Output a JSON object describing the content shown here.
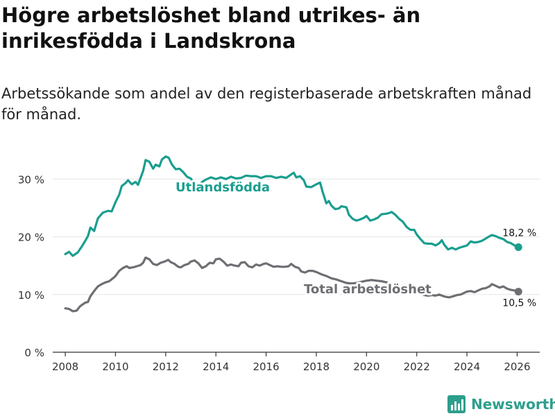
{
  "header": {
    "title": "Högre arbetslöshet bland utrikes- än inrikesfödda i Landskrona",
    "subtitle": "Arbetssökande som andel av den registerbaserade arbetskraften månad för månad."
  },
  "brand": {
    "name": "Newsworthy"
  },
  "colors": {
    "foreign": "#1a9e8f",
    "total": "#6e6e73",
    "grid": "#e6e6e6",
    "axis": "#333333"
  },
  "chart_data": {
    "type": "line",
    "title": "Högre arbetslöshet bland utrikes- än inrikesfödda i Landskrona",
    "xlabel": "",
    "ylabel": "",
    "xlim": [
      2007.5,
      2026.9
    ],
    "ylim": [
      0,
      37
    ],
    "x_ticks": [
      2008,
      2010,
      2012,
      2014,
      2016,
      2018,
      2020,
      2022,
      2024,
      2026
    ],
    "x_tick_labels": [
      "2008",
      "2010",
      "2012",
      "2014",
      "2016",
      "2018",
      "2020",
      "2022",
      "2024",
      "2026"
    ],
    "y_ticks": [
      0,
      10,
      20,
      30
    ],
    "y_tick_labels": [
      "0 %",
      "10 %",
      "20 %",
      "30 %"
    ],
    "grid": "horizontal",
    "series": [
      {
        "name": "Utlandsfödda",
        "end_label": "18,2 %",
        "points": [
          [
            2008.0,
            17.0
          ],
          [
            2008.15,
            17.4
          ],
          [
            2008.3,
            16.7
          ],
          [
            2008.5,
            17.3
          ],
          [
            2008.7,
            18.6
          ],
          [
            2008.9,
            20.1
          ],
          [
            2009.0,
            21.6
          ],
          [
            2009.15,
            21.0
          ],
          [
            2009.3,
            23.2
          ],
          [
            2009.5,
            24.2
          ],
          [
            2009.7,
            24.5
          ],
          [
            2009.85,
            24.4
          ],
          [
            2010.0,
            26.0
          ],
          [
            2010.15,
            27.3
          ],
          [
            2010.25,
            28.8
          ],
          [
            2010.4,
            29.3
          ],
          [
            2010.5,
            29.8
          ],
          [
            2010.65,
            29.1
          ],
          [
            2010.8,
            29.5
          ],
          [
            2010.9,
            29.0
          ],
          [
            2011.0,
            30.2
          ],
          [
            2011.1,
            31.4
          ],
          [
            2011.2,
            33.3
          ],
          [
            2011.35,
            33.0
          ],
          [
            2011.5,
            31.8
          ],
          [
            2011.6,
            32.5
          ],
          [
            2011.75,
            32.2
          ],
          [
            2011.85,
            33.4
          ],
          [
            2012.0,
            33.9
          ],
          [
            2012.12,
            33.7
          ],
          [
            2012.25,
            32.5
          ],
          [
            2012.4,
            31.7
          ],
          [
            2012.55,
            31.8
          ],
          [
            2012.7,
            31.2
          ],
          [
            2012.85,
            30.4
          ],
          [
            2013.0,
            30.1
          ],
          [
            2013.15,
            29.2
          ],
          [
            2013.3,
            28.7
          ],
          [
            2013.45,
            29.5
          ],
          [
            2013.6,
            29.9
          ],
          [
            2013.8,
            30.3
          ],
          [
            2014.0,
            30.0
          ],
          [
            2014.2,
            30.3
          ],
          [
            2014.4,
            30.0
          ],
          [
            2014.6,
            30.4
          ],
          [
            2014.8,
            30.1
          ],
          [
            2015.0,
            30.2
          ],
          [
            2015.2,
            30.6
          ],
          [
            2015.4,
            30.5
          ],
          [
            2015.6,
            30.5
          ],
          [
            2015.8,
            30.2
          ],
          [
            2016.0,
            30.5
          ],
          [
            2016.2,
            30.5
          ],
          [
            2016.4,
            30.2
          ],
          [
            2016.6,
            30.4
          ],
          [
            2016.8,
            30.2
          ],
          [
            2017.0,
            30.8
          ],
          [
            2017.1,
            31.1
          ],
          [
            2017.2,
            30.3
          ],
          [
            2017.35,
            30.5
          ],
          [
            2017.5,
            29.8
          ],
          [
            2017.6,
            28.7
          ],
          [
            2017.8,
            28.6
          ],
          [
            2018.0,
            29.1
          ],
          [
            2018.15,
            29.4
          ],
          [
            2018.25,
            27.8
          ],
          [
            2018.4,
            25.8
          ],
          [
            2018.5,
            26.2
          ],
          [
            2018.6,
            25.4
          ],
          [
            2018.75,
            24.8
          ],
          [
            2018.9,
            24.9
          ],
          [
            2019.0,
            25.3
          ],
          [
            2019.2,
            25.1
          ],
          [
            2019.3,
            23.8
          ],
          [
            2019.45,
            23.1
          ],
          [
            2019.6,
            22.8
          ],
          [
            2019.75,
            23.0
          ],
          [
            2019.9,
            23.3
          ],
          [
            2020.0,
            23.6
          ],
          [
            2020.15,
            22.8
          ],
          [
            2020.3,
            23.0
          ],
          [
            2020.45,
            23.3
          ],
          [
            2020.6,
            23.9
          ],
          [
            2020.8,
            24.0
          ],
          [
            2020.95,
            24.2
          ],
          [
            2021.0,
            24.3
          ],
          [
            2021.15,
            23.8
          ],
          [
            2021.3,
            23.1
          ],
          [
            2021.45,
            22.6
          ],
          [
            2021.6,
            21.7
          ],
          [
            2021.75,
            21.2
          ],
          [
            2021.9,
            21.2
          ],
          [
            2022.0,
            20.4
          ],
          [
            2022.15,
            19.6
          ],
          [
            2022.3,
            18.9
          ],
          [
            2022.45,
            18.8
          ],
          [
            2022.6,
            18.8
          ],
          [
            2022.75,
            18.5
          ],
          [
            2022.9,
            18.9
          ],
          [
            2023.0,
            19.4
          ],
          [
            2023.1,
            18.6
          ],
          [
            2023.25,
            17.8
          ],
          [
            2023.4,
            18.1
          ],
          [
            2023.55,
            17.8
          ],
          [
            2023.7,
            18.1
          ],
          [
            2023.85,
            18.3
          ],
          [
            2024.0,
            18.5
          ],
          [
            2024.15,
            19.2
          ],
          [
            2024.3,
            19.0
          ],
          [
            2024.45,
            19.1
          ],
          [
            2024.6,
            19.3
          ],
          [
            2024.75,
            19.7
          ],
          [
            2024.9,
            20.1
          ],
          [
            2025.0,
            20.3
          ],
          [
            2025.15,
            20.1
          ],
          [
            2025.3,
            19.8
          ],
          [
            2025.45,
            19.6
          ],
          [
            2025.6,
            19.1
          ],
          [
            2025.75,
            18.9
          ],
          [
            2025.9,
            18.5
          ],
          [
            2026.05,
            18.2
          ]
        ]
      },
      {
        "name": "Total arbetslöshet",
        "end_label": "10,5 %",
        "points": [
          [
            2008.0,
            7.6
          ],
          [
            2008.15,
            7.5
          ],
          [
            2008.3,
            7.1
          ],
          [
            2008.45,
            7.2
          ],
          [
            2008.6,
            8.0
          ],
          [
            2008.8,
            8.6
          ],
          [
            2008.9,
            8.7
          ],
          [
            2009.0,
            9.7
          ],
          [
            2009.15,
            10.6
          ],
          [
            2009.3,
            11.4
          ],
          [
            2009.45,
            11.8
          ],
          [
            2009.6,
            12.1
          ],
          [
            2009.75,
            12.3
          ],
          [
            2009.9,
            12.8
          ],
          [
            2010.0,
            13.2
          ],
          [
            2010.15,
            14.1
          ],
          [
            2010.3,
            14.6
          ],
          [
            2010.45,
            14.9
          ],
          [
            2010.55,
            14.6
          ],
          [
            2010.7,
            14.7
          ],
          [
            2010.85,
            14.9
          ],
          [
            2011.0,
            15.1
          ],
          [
            2011.1,
            15.5
          ],
          [
            2011.2,
            16.4
          ],
          [
            2011.35,
            16.1
          ],
          [
            2011.5,
            15.3
          ],
          [
            2011.65,
            15.1
          ],
          [
            2011.8,
            15.5
          ],
          [
            2011.95,
            15.7
          ],
          [
            2012.1,
            16.0
          ],
          [
            2012.2,
            15.6
          ],
          [
            2012.35,
            15.3
          ],
          [
            2012.5,
            14.8
          ],
          [
            2012.6,
            14.7
          ],
          [
            2012.75,
            15.1
          ],
          [
            2012.9,
            15.3
          ],
          [
            2013.0,
            15.7
          ],
          [
            2013.15,
            15.9
          ],
          [
            2013.3,
            15.4
          ],
          [
            2013.45,
            14.6
          ],
          [
            2013.6,
            14.9
          ],
          [
            2013.75,
            15.5
          ],
          [
            2013.9,
            15.4
          ],
          [
            2014.0,
            16.1
          ],
          [
            2014.15,
            16.2
          ],
          [
            2014.3,
            15.7
          ],
          [
            2014.45,
            15.0
          ],
          [
            2014.6,
            15.2
          ],
          [
            2014.75,
            15.0
          ],
          [
            2014.9,
            14.9
          ],
          [
            2015.0,
            15.5
          ],
          [
            2015.15,
            15.6
          ],
          [
            2015.3,
            14.9
          ],
          [
            2015.45,
            14.7
          ],
          [
            2015.6,
            15.2
          ],
          [
            2015.75,
            15.0
          ],
          [
            2015.9,
            15.3
          ],
          [
            2016.0,
            15.4
          ],
          [
            2016.15,
            15.1
          ],
          [
            2016.3,
            14.8
          ],
          [
            2016.45,
            14.9
          ],
          [
            2016.6,
            14.8
          ],
          [
            2016.75,
            14.8
          ],
          [
            2016.9,
            14.9
          ],
          [
            2017.0,
            15.3
          ],
          [
            2017.15,
            14.8
          ],
          [
            2017.3,
            14.6
          ],
          [
            2017.4,
            14.0
          ],
          [
            2017.55,
            13.8
          ],
          [
            2017.7,
            14.1
          ],
          [
            2017.85,
            14.1
          ],
          [
            2018.0,
            13.9
          ],
          [
            2018.2,
            13.5
          ],
          [
            2018.4,
            13.2
          ],
          [
            2018.6,
            12.8
          ],
          [
            2018.8,
            12.6
          ],
          [
            2019.0,
            12.3
          ],
          [
            2019.2,
            12.0
          ],
          [
            2019.4,
            11.9
          ],
          [
            2019.6,
            12.0
          ],
          [
            2019.8,
            12.2
          ],
          [
            2020.0,
            12.4
          ],
          [
            2020.2,
            12.5
          ],
          [
            2020.4,
            12.4
          ],
          [
            2020.6,
            12.3
          ],
          [
            2020.8,
            12.1
          ],
          [
            2021.0,
            11.8
          ],
          [
            2021.2,
            11.4
          ],
          [
            2021.4,
            11.0
          ],
          [
            2021.6,
            10.8
          ],
          [
            2021.8,
            10.6
          ],
          [
            2022.0,
            10.6
          ],
          [
            2022.15,
            10.2
          ],
          [
            2022.3,
            9.9
          ],
          [
            2022.45,
            9.8
          ],
          [
            2022.6,
            9.9
          ],
          [
            2022.75,
            9.8
          ],
          [
            2022.9,
            10.0
          ],
          [
            2023.0,
            9.8
          ],
          [
            2023.15,
            9.6
          ],
          [
            2023.3,
            9.5
          ],
          [
            2023.45,
            9.7
          ],
          [
            2023.6,
            9.9
          ],
          [
            2023.75,
            10.0
          ],
          [
            2023.9,
            10.3
          ],
          [
            2024.0,
            10.5
          ],
          [
            2024.15,
            10.6
          ],
          [
            2024.3,
            10.4
          ],
          [
            2024.45,
            10.7
          ],
          [
            2024.6,
            11.0
          ],
          [
            2024.75,
            11.1
          ],
          [
            2024.9,
            11.4
          ],
          [
            2025.0,
            11.8
          ],
          [
            2025.15,
            11.5
          ],
          [
            2025.3,
            11.2
          ],
          [
            2025.45,
            11.4
          ],
          [
            2025.6,
            11.0
          ],
          [
            2025.75,
            10.8
          ],
          [
            2025.9,
            10.7
          ],
          [
            2026.05,
            10.5
          ]
        ]
      }
    ]
  }
}
